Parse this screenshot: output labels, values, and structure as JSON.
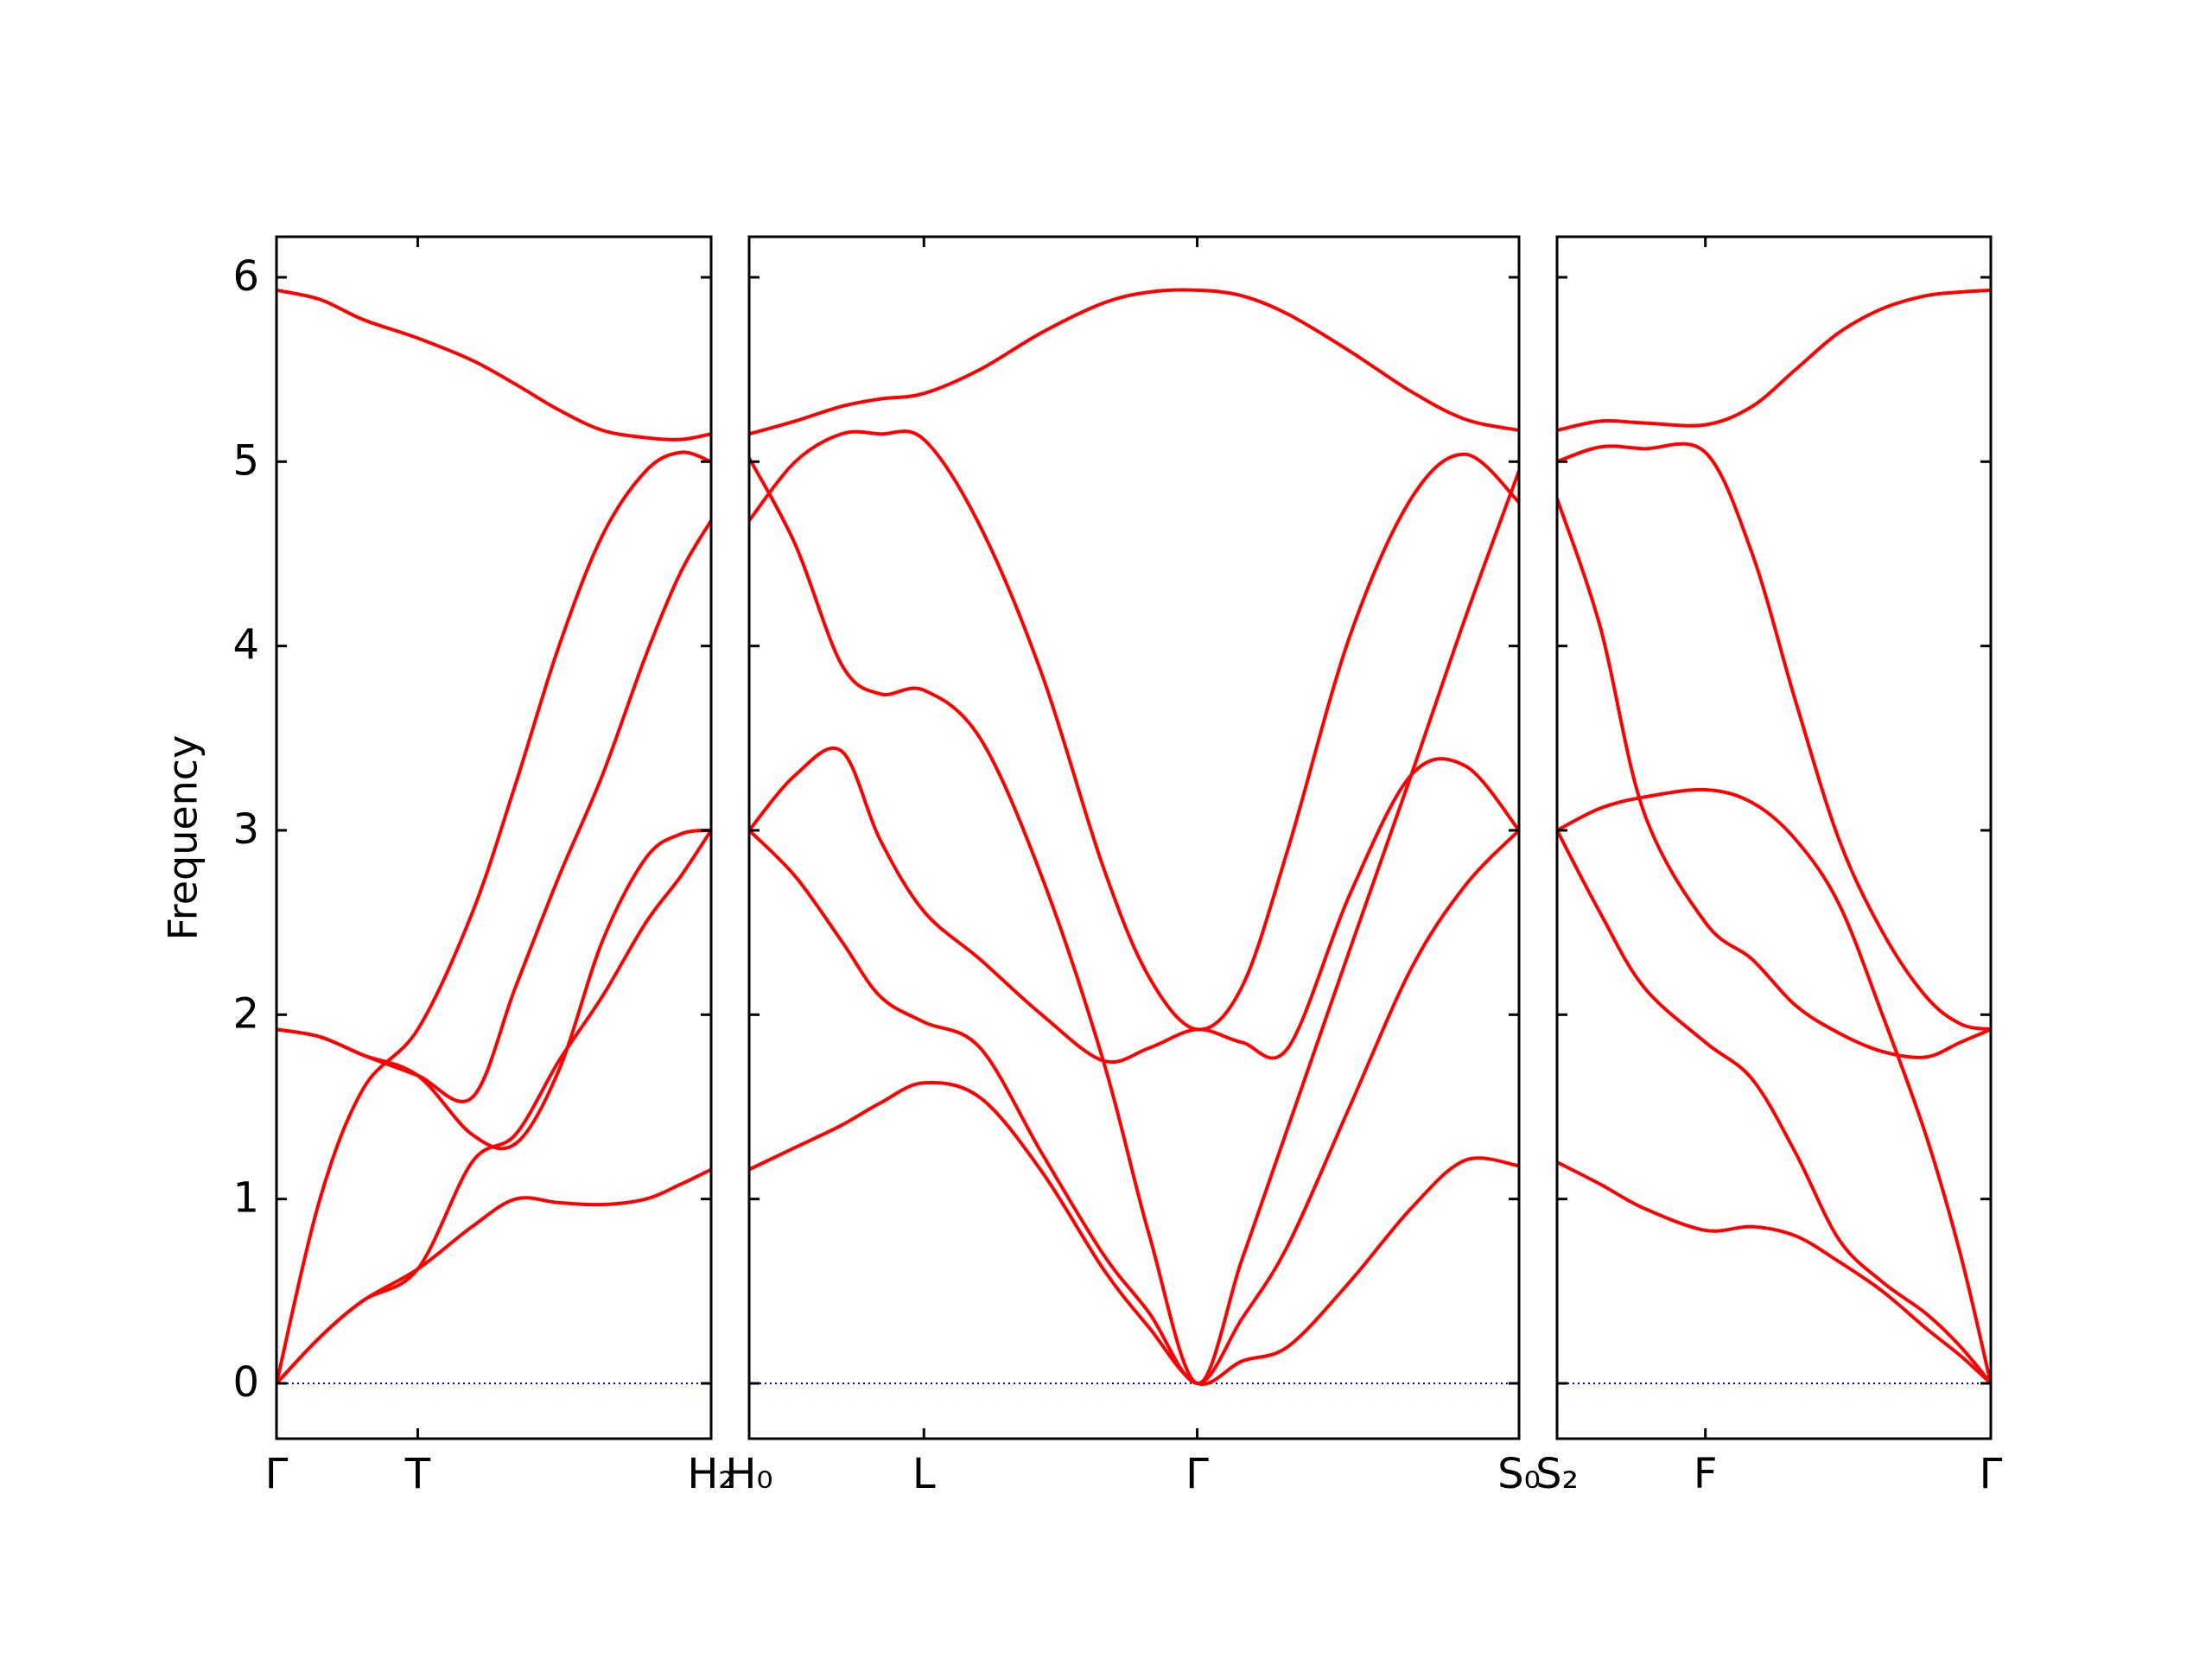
{
  "chart_data": [
    {
      "type": "line",
      "y_label": "Frequency",
      "ytick_labels": true,
      "color": "#ff0000",
      "hline": {
        "value": 0,
        "color": "#0000cc",
        "style": "dotted"
      },
      "xlim": [
        0,
        1
      ],
      "ylim": [
        -0.3,
        6.22
      ],
      "yticks": [
        0,
        1,
        2,
        3,
        4,
        5,
        6
      ],
      "xticks": [
        {
          "value": 0,
          "label": "Γ"
        },
        {
          "value": 0.325,
          "label": "T"
        },
        {
          "value": 1,
          "label": "H₂"
        }
      ],
      "x": [
        0,
        0.1,
        0.2,
        0.325,
        0.45,
        0.55,
        0.65,
        0.75,
        0.85,
        0.93,
        1
      ],
      "series": [
        {
          "values": [
            5.93,
            5.88,
            5.77,
            5.67,
            5.55,
            5.42,
            5.28,
            5.17,
            5.13,
            5.12,
            5.15
          ]
        },
        {
          "values": [
            0,
            1.0,
            1.6,
            1.92,
            2.55,
            3.25,
            4.0,
            4.6,
            4.95,
            5.05,
            5.0
          ]
        },
        {
          "values": [
            1.92,
            1.88,
            1.78,
            1.67,
            1.55,
            2.15,
            2.75,
            3.3,
            3.95,
            4.4,
            4.68
          ]
        },
        {
          "values": [
            1.92,
            1.88,
            1.78,
            1.67,
            1.35,
            1.3,
            1.7,
            2.4,
            2.85,
            2.98,
            3.0
          ]
        },
        {
          "values": [
            0,
            0.25,
            0.45,
            0.62,
            1.2,
            1.35,
            1.75,
            2.1,
            2.5,
            2.75,
            3.0
          ]
        },
        {
          "values": [
            0,
            0.25,
            0.45,
            0.62,
            0.85,
            1.0,
            0.98,
            0.97,
            1.0,
            1.08,
            1.16
          ]
        }
      ]
    },
    {
      "type": "line",
      "ytick_labels": false,
      "color": "#ff0000",
      "hline": {
        "value": 0,
        "color": "#0000cc",
        "style": "dotted"
      },
      "xlim": [
        0,
        1
      ],
      "ylim": [
        -0.3,
        6.22
      ],
      "yticks": [
        0,
        1,
        2,
        3,
        4,
        5,
        6
      ],
      "xticks": [
        {
          "value": 0,
          "label": "H₀"
        },
        {
          "value": 0.227,
          "label": "L"
        },
        {
          "value": 0.582,
          "label": "Γ"
        },
        {
          "value": 1,
          "label": "S₀"
        }
      ],
      "x": [
        0,
        0.06,
        0.12,
        0.17,
        0.227,
        0.3,
        0.38,
        0.46,
        0.52,
        0.582,
        0.64,
        0.7,
        0.78,
        0.86,
        0.93,
        1
      ],
      "series": [
        {
          "values": [
            5.15,
            5.22,
            5.3,
            5.34,
            5.37,
            5.5,
            5.7,
            5.86,
            5.92,
            5.93,
            5.9,
            5.8,
            5.6,
            5.38,
            5.23,
            5.17
          ]
        },
        {
          "values": [
            4.68,
            5.0,
            5.15,
            5.15,
            5.12,
            4.65,
            3.85,
            2.8,
            2.2,
            1.92,
            2.15,
            2.9,
            4.05,
            4.8,
            5.04,
            4.78
          ]
        },
        {
          "values": [
            5.02,
            4.55,
            3.9,
            3.74,
            3.76,
            3.5,
            2.75,
            1.75,
            0.8,
            0,
            0.67,
            1.39,
            2.35,
            3.3,
            4.15,
            4.95
          ]
        },
        {
          "values": [
            3.0,
            3.3,
            3.43,
            2.95,
            2.56,
            2.3,
            2.0,
            1.75,
            1.82,
            1.92,
            1.85,
            1.82,
            2.65,
            3.3,
            3.35,
            3.0
          ]
        },
        {
          "values": [
            3.0,
            2.75,
            2.4,
            2.1,
            1.96,
            1.82,
            1.25,
            0.7,
            0.38,
            0,
            0.35,
            0.75,
            1.5,
            2.25,
            2.7,
            3.0
          ]
        },
        {
          "values": [
            1.16,
            1.28,
            1.4,
            1.52,
            1.63,
            1.55,
            1.15,
            0.62,
            0.3,
            0,
            0.12,
            0.2,
            0.55,
            0.95,
            1.21,
            1.18
          ]
        }
      ]
    },
    {
      "type": "line",
      "ytick_labels": false,
      "color": "#ff0000",
      "hline": {
        "value": 0,
        "color": "#0000cc",
        "style": "dotted"
      },
      "xlim": [
        0,
        1
      ],
      "ylim": [
        -0.3,
        6.22
      ],
      "yticks": [
        0,
        1,
        2,
        3,
        4,
        5,
        6
      ],
      "xticks": [
        {
          "value": 0,
          "label": "S₂"
        },
        {
          "value": 0.342,
          "label": "F"
        },
        {
          "value": 1,
          "label": "Γ"
        }
      ],
      "x": [
        0,
        0.1,
        0.2,
        0.342,
        0.45,
        0.55,
        0.65,
        0.75,
        0.85,
        0.93,
        1
      ],
      "series": [
        {
          "values": [
            5.17,
            5.22,
            5.21,
            5.2,
            5.3,
            5.5,
            5.7,
            5.83,
            5.9,
            5.92,
            5.93
          ]
        },
        {
          "values": [
            5.0,
            5.08,
            5.07,
            5.05,
            4.5,
            3.7,
            2.95,
            2.45,
            2.1,
            1.95,
            1.92
          ]
        },
        {
          "values": [
            4.8,
            4.1,
            3.1,
            2.5,
            2.3,
            2.05,
            1.9,
            1.8,
            1.77,
            1.85,
            1.92
          ]
        },
        {
          "values": [
            3.0,
            3.12,
            3.18,
            3.22,
            3.15,
            2.95,
            2.6,
            2.0,
            1.35,
            0.7,
            0
          ]
        },
        {
          "values": [
            3.0,
            2.55,
            2.15,
            1.85,
            1.65,
            1.25,
            0.78,
            0.55,
            0.38,
            0.2,
            0
          ]
        },
        {
          "values": [
            1.2,
            1.08,
            0.95,
            0.83,
            0.85,
            0.8,
            0.66,
            0.5,
            0.3,
            0.15,
            0
          ]
        }
      ]
    }
  ]
}
